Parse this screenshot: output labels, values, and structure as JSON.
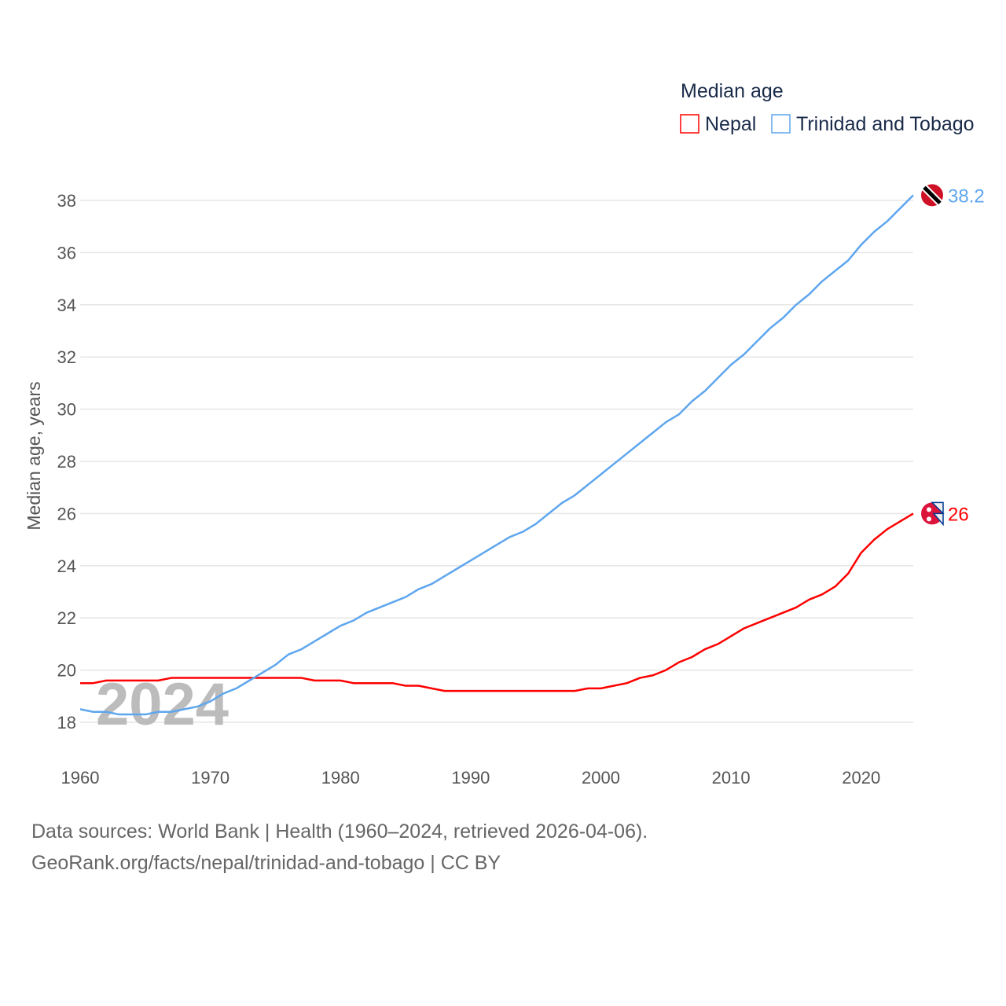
{
  "chart_data": {
    "type": "line",
    "title": "Median age",
    "ylabel": "Median age, years",
    "xlabel": "",
    "watermark_year": "2024",
    "xlim": [
      1960,
      2024
    ],
    "ylim": [
      17,
      39
    ],
    "x_ticks": [
      "1960",
      "1970",
      "1980",
      "1990",
      "2000",
      "2010",
      "2020"
    ],
    "y_ticks": [
      "18",
      "20",
      "22",
      "24",
      "26",
      "28",
      "30",
      "32",
      "34",
      "36",
      "38"
    ],
    "grid": true,
    "legend_placement": "top-right",
    "x": [
      1960,
      1961,
      1962,
      1963,
      1964,
      1965,
      1966,
      1967,
      1968,
      1969,
      1970,
      1971,
      1972,
      1973,
      1974,
      1975,
      1976,
      1977,
      1978,
      1979,
      1980,
      1981,
      1982,
      1983,
      1984,
      1985,
      1986,
      1987,
      1988,
      1989,
      1990,
      1991,
      1992,
      1993,
      1994,
      1995,
      1996,
      1997,
      1998,
      1999,
      2000,
      2001,
      2002,
      2003,
      2004,
      2005,
      2006,
      2007,
      2008,
      2009,
      2010,
      2011,
      2012,
      2013,
      2014,
      2015,
      2016,
      2017,
      2018,
      2019,
      2020,
      2021,
      2022,
      2023,
      2024
    ],
    "series": [
      {
        "name": "Nepal",
        "color": "#ff0000",
        "end_label": "26",
        "values": [
          19.5,
          19.5,
          19.6,
          19.6,
          19.6,
          19.6,
          19.6,
          19.7,
          19.7,
          19.7,
          19.7,
          19.7,
          19.7,
          19.7,
          19.7,
          19.7,
          19.7,
          19.7,
          19.6,
          19.6,
          19.6,
          19.5,
          19.5,
          19.5,
          19.5,
          19.4,
          19.4,
          19.3,
          19.2,
          19.2,
          19.2,
          19.2,
          19.2,
          19.2,
          19.2,
          19.2,
          19.2,
          19.2,
          19.2,
          19.3,
          19.3,
          19.4,
          19.5,
          19.7,
          19.8,
          20.0,
          20.3,
          20.5,
          20.8,
          21.0,
          21.3,
          21.6,
          21.8,
          22.0,
          22.2,
          22.4,
          22.7,
          22.9,
          23.2,
          23.7,
          24.5,
          25.0,
          25.4,
          25.7,
          26.0
        ]
      },
      {
        "name": "Trinidad and Tobago",
        "color": "#5ea6ee",
        "end_label": "38.2",
        "values": [
          18.5,
          18.4,
          18.4,
          18.3,
          18.3,
          18.3,
          18.4,
          18.4,
          18.5,
          18.6,
          18.8,
          19.1,
          19.3,
          19.6,
          19.9,
          20.2,
          20.6,
          20.8,
          21.1,
          21.4,
          21.7,
          21.9,
          22.2,
          22.4,
          22.6,
          22.8,
          23.1,
          23.3,
          23.6,
          23.9,
          24.2,
          24.5,
          24.8,
          25.1,
          25.3,
          25.6,
          26.0,
          26.4,
          26.7,
          27.1,
          27.5,
          27.9,
          28.3,
          28.7,
          29.1,
          29.5,
          29.8,
          30.3,
          30.7,
          31.2,
          31.7,
          32.1,
          32.6,
          33.1,
          33.5,
          34.0,
          34.4,
          34.9,
          35.3,
          35.7,
          36.3,
          36.8,
          37.2,
          37.7,
          38.2
        ]
      }
    ]
  },
  "footer": {
    "line1": "Data sources: World Bank | Health (1960–2024, retrieved 2026-04-06).",
    "line2": "GeoRank.org/facts/nepal/trinidad-and-tobago | CC BY"
  }
}
